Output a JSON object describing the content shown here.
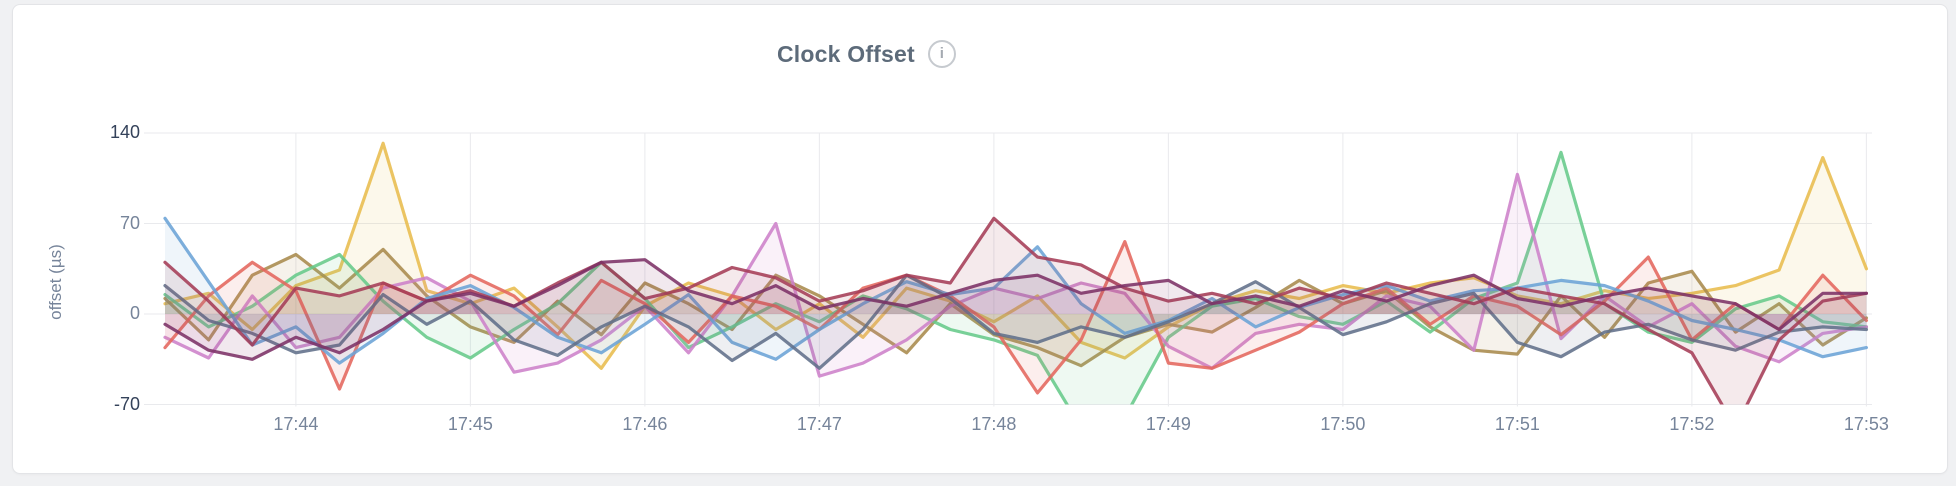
{
  "header": {
    "title": "Clock Offset",
    "info_icon": "i"
  },
  "chart_data": {
    "type": "line",
    "title": "Clock Offset",
    "xlabel": "",
    "ylabel": "offset (µs)",
    "ylim": [
      -70,
      140
    ],
    "grid": true,
    "legend": "none",
    "x_start": "17:43:15",
    "x_interval_seconds": 15,
    "point_count": 40,
    "yticks": [
      {
        "label": "140",
        "value": 140,
        "emphasized": true
      },
      {
        "label": "70",
        "value": 70,
        "emphasized": false
      },
      {
        "label": "0",
        "value": 0,
        "emphasized": false
      },
      {
        "label": "-70",
        "value": -70,
        "emphasized": true
      }
    ],
    "xticks": [
      {
        "label": "17:44",
        "index": 3
      },
      {
        "label": "17:45",
        "index": 7
      },
      {
        "label": "17:46",
        "index": 11
      },
      {
        "label": "17:47",
        "index": 15
      },
      {
        "label": "17:48",
        "index": 19
      },
      {
        "label": "17:49",
        "index": 23
      },
      {
        "label": "17:50",
        "index": 27
      },
      {
        "label": "17:51",
        "index": 31
      },
      {
        "label": "17:52",
        "index": 35
      },
      {
        "label": "17:53",
        "index": 39
      }
    ],
    "series": [
      {
        "name": "yellow",
        "color": "#e8bc4d",
        "values": [
          8,
          16,
          -12,
          22,
          34,
          132,
          18,
          8,
          20,
          -10,
          -42,
          6,
          24,
          14,
          -12,
          8,
          -18,
          20,
          10,
          -6,
          14,
          -22,
          -34,
          -10,
          8,
          18,
          12,
          22,
          16,
          24,
          28,
          14,
          8,
          18,
          12,
          16,
          22,
          34,
          121,
          35
        ]
      },
      {
        "name": "olive",
        "color": "#a98a4c",
        "values": [
          12,
          -20,
          30,
          46,
          20,
          50,
          14,
          -10,
          -22,
          10,
          -16,
          24,
          8,
          -12,
          30,
          14,
          -8,
          -30,
          8,
          -16,
          -26,
          -40,
          -18,
          -8,
          -14,
          5,
          26,
          8,
          18,
          -10,
          -28,
          -31,
          14,
          -18,
          24,
          33,
          -14,
          8,
          -24,
          -3
        ]
      },
      {
        "name": "green",
        "color": "#67c98a",
        "values": [
          15,
          -10,
          6,
          30,
          46,
          10,
          -18,
          -34,
          -12,
          8,
          40,
          12,
          -26,
          -10,
          8,
          -6,
          14,
          4,
          -12,
          -20,
          -32,
          -88,
          -80,
          -18,
          6,
          12,
          -2,
          -8,
          10,
          -14,
          12,
          24,
          125,
          8,
          -14,
          -22,
          4,
          14,
          -6,
          -10
        ]
      },
      {
        "name": "orchid",
        "color": "#cd81c9",
        "values": [
          -18,
          -34,
          14,
          -26,
          -18,
          20,
          28,
          10,
          -45,
          -38,
          -20,
          6,
          -30,
          14,
          70,
          -48,
          -38,
          -20,
          6,
          20,
          12,
          24,
          16,
          -25,
          -42,
          -15,
          -8,
          -12,
          14,
          6,
          -28,
          108,
          -19,
          14,
          -10,
          8,
          -25,
          -37,
          -15,
          -10
        ]
      },
      {
        "name": "red",
        "color": "#e4675d",
        "values": [
          -26,
          14,
          40,
          18,
          -58,
          24,
          10,
          30,
          14,
          -16,
          26,
          8,
          -22,
          14,
          6,
          -12,
          20,
          30,
          14,
          -10,
          -61,
          -20,
          56,
          -38,
          -42,
          -28,
          -14,
          8,
          20,
          -8,
          14,
          6,
          -16,
          10,
          44,
          -20,
          8,
          -12,
          30,
          -5
        ]
      },
      {
        "name": "blue",
        "color": "#6ba3d6",
        "values": [
          74,
          25,
          -24,
          -10,
          -38,
          -15,
          12,
          22,
          5,
          -18,
          -30,
          -8,
          15,
          -22,
          -35,
          -12,
          8,
          25,
          15,
          20,
          52,
          8,
          -15,
          -5,
          12,
          -10,
          5,
          15,
          22,
          10,
          18,
          20,
          26,
          22,
          10,
          -5,
          -12,
          -20,
          -33,
          -26
        ]
      },
      {
        "name": "slate",
        "color": "#61708a",
        "values": [
          22,
          -5,
          -15,
          -30,
          -24,
          15,
          -8,
          10,
          -20,
          -32,
          -10,
          6,
          -10,
          -36,
          -15,
          -42,
          -12,
          30,
          12,
          -15,
          -22,
          -10,
          -18,
          -6,
          8,
          25,
          5,
          -16,
          -6,
          8,
          16,
          -22,
          -33,
          -14,
          -8,
          -20,
          -28,
          -14,
          -10,
          -12
        ]
      },
      {
        "name": "maroon",
        "color": "#a53c56",
        "values": [
          40,
          10,
          -24,
          20,
          14,
          24,
          10,
          18,
          6,
          24,
          40,
          12,
          20,
          36,
          28,
          10,
          18,
          30,
          24,
          74,
          44,
          38,
          20,
          10,
          16,
          8,
          20,
          12,
          24,
          16,
          8,
          20,
          14,
          8,
          -12,
          -30,
          -88,
          -20,
          10,
          16
        ]
      },
      {
        "name": "plum",
        "color": "#7c3166",
        "values": [
          -8,
          -28,
          -35,
          -18,
          -30,
          -12,
          10,
          16,
          6,
          22,
          40,
          42,
          18,
          8,
          22,
          4,
          12,
          6,
          16,
          26,
          30,
          16,
          22,
          26,
          8,
          14,
          6,
          18,
          10,
          22,
          30,
          12,
          6,
          14,
          20,
          14,
          8,
          -12,
          16,
          16
        ]
      }
    ]
  }
}
